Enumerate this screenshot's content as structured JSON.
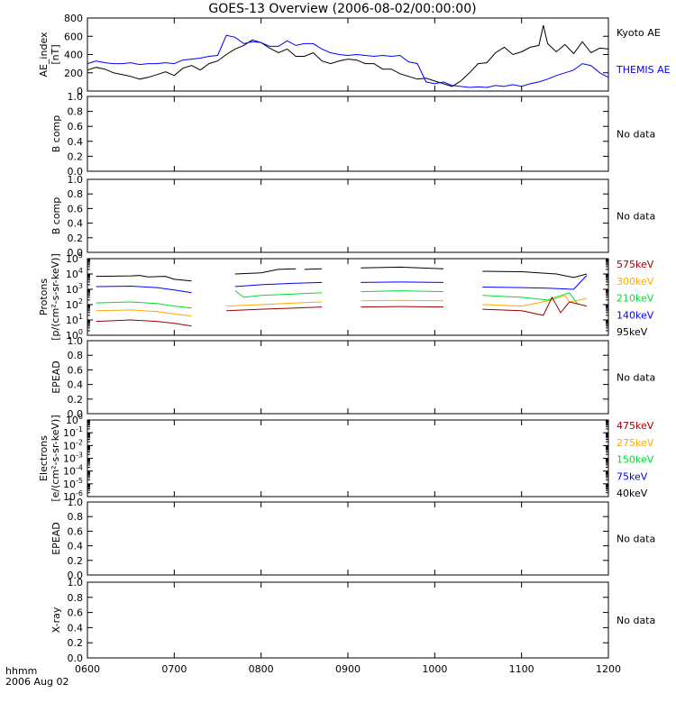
{
  "title": "GOES-13 Overview (2006-08-02/00:00:00)",
  "time_axis": {
    "ticks": [
      "0600",
      "0700",
      "0800",
      "0900",
      "1000",
      "1100",
      "1200"
    ],
    "xlim_hours": [
      6,
      12
    ],
    "corner_label_line1": "hhmm",
    "corner_label_line2": "2006 Aug 02"
  },
  "colors": {
    "black": "#000000",
    "blue": "#0000ff",
    "green": "#00dd33",
    "orange": "#ffaa00",
    "darkred": "#990000"
  },
  "chart_data": [
    {
      "type": "line",
      "panel": "ae",
      "ylabel_lines": [
        "AE_index",
        "[nT]"
      ],
      "ylim": [
        0,
        800
      ],
      "yticks": [
        "0",
        "200",
        "400",
        "600",
        "800"
      ],
      "series": [
        {
          "name": "Kyoto AE",
          "color": "#000000",
          "x": [
            6.0,
            6.1,
            6.2,
            6.3,
            6.4,
            6.5,
            6.6,
            6.7,
            6.8,
            6.9,
            7.0,
            7.1,
            7.2,
            7.3,
            7.4,
            7.5,
            7.6,
            7.7,
            7.8,
            7.9,
            8.0,
            8.1,
            8.2,
            8.3,
            8.4,
            8.5,
            8.6,
            8.7,
            8.8,
            8.9,
            9.0,
            9.1,
            9.2,
            9.3,
            9.4,
            9.5,
            9.6,
            9.7,
            9.8,
            9.9,
            10.0,
            10.1,
            10.2,
            10.3,
            10.4,
            10.5,
            10.6,
            10.7,
            10.8,
            10.9,
            11.0,
            11.1,
            11.2,
            11.25,
            11.3,
            11.4,
            11.5,
            11.6,
            11.7,
            11.8,
            11.9,
            12.0
          ],
          "y": [
            230,
            260,
            240,
            200,
            180,
            160,
            130,
            150,
            180,
            210,
            170,
            250,
            280,
            230,
            300,
            330,
            400,
            460,
            500,
            560,
            530,
            470,
            420,
            460,
            380,
            380,
            420,
            330,
            300,
            330,
            350,
            340,
            300,
            300,
            240,
            240,
            190,
            160,
            130,
            140,
            110,
            80,
            50,
            110,
            200,
            300,
            310,
            420,
            480,
            400,
            430,
            480,
            500,
            720,
            520,
            430,
            510,
            410,
            540,
            420,
            470,
            460
          ]
        },
        {
          "name": "THEMIS AE",
          "color": "#0000ff",
          "x": [
            6.0,
            6.1,
            6.2,
            6.3,
            6.4,
            6.5,
            6.6,
            6.7,
            6.8,
            6.9,
            7.0,
            7.1,
            7.2,
            7.3,
            7.4,
            7.5,
            7.6,
            7.7,
            7.8,
            7.9,
            8.0,
            8.1,
            8.2,
            8.3,
            8.4,
            8.5,
            8.6,
            8.7,
            8.8,
            8.9,
            9.0,
            9.1,
            9.2,
            9.3,
            9.4,
            9.5,
            9.6,
            9.7,
            9.8,
            9.9,
            10.0,
            10.1,
            10.2,
            10.3,
            10.4,
            10.5,
            10.6,
            10.7,
            10.8,
            10.9,
            11.0,
            11.1,
            11.2,
            11.3,
            11.4,
            11.5,
            11.6,
            11.7,
            11.8,
            11.9,
            12.0
          ],
          "y": [
            300,
            330,
            310,
            300,
            300,
            310,
            290,
            300,
            300,
            310,
            300,
            340,
            350,
            360,
            380,
            390,
            610,
            590,
            520,
            540,
            530,
            490,
            490,
            550,
            500,
            520,
            520,
            460,
            420,
            400,
            390,
            400,
            390,
            380,
            390,
            380,
            390,
            320,
            300,
            100,
            80,
            100,
            60,
            50,
            40,
            45,
            40,
            60,
            50,
            70,
            50,
            80,
            100,
            130,
            170,
            200,
            230,
            300,
            280,
            200,
            150
          ]
        }
      ],
      "legend": [
        {
          "label": "Kyoto AE",
          "color": "#000000"
        },
        {
          "label": "THEMIS AE",
          "color": "#0000ff"
        }
      ]
    },
    {
      "type": "line",
      "panel": "bcomp1",
      "ylabel_lines": [
        "B comp"
      ],
      "ylim": [
        0,
        1
      ],
      "yticks": [
        "0.0",
        "0.2",
        "0.4",
        "0.6",
        "0.8",
        "1.0"
      ],
      "series": [],
      "note": "No data"
    },
    {
      "type": "line",
      "panel": "bcomp2",
      "ylabel_lines": [
        "B comp"
      ],
      "ylim": [
        0,
        1
      ],
      "yticks": [
        "0.0",
        "0.2",
        "0.4",
        "0.6",
        "0.8",
        "1.0"
      ],
      "series": [],
      "note": "No data"
    },
    {
      "type": "line",
      "panel": "protons",
      "ylabel_lines": [
        "Protons",
        "[p/(cm²-s-sr-keV)]"
      ],
      "yscale": "log",
      "ylim": [
        1,
        100000
      ],
      "yticks": [
        {
          "base": "10",
          "exp": "0"
        },
        {
          "base": "10",
          "exp": "1"
        },
        {
          "base": "10",
          "exp": "2"
        },
        {
          "base": "10",
          "exp": "3"
        },
        {
          "base": "10",
          "exp": "4"
        },
        {
          "base": "10",
          "exp": "5"
        }
      ],
      "series": [
        {
          "name": "95keV",
          "color": "#000000",
          "segments": [
            {
              "x": [
                6.1,
                6.5,
                6.6,
                6.7,
                6.9,
                7.0,
                7.2
              ],
              "y": [
                7000,
                7500,
                8000,
                6500,
                7000,
                4500,
                3500
              ]
            },
            {
              "x": [
                7.7,
                8.0,
                8.2,
                8.4
              ],
              "y": [
                10000,
                12000,
                20000,
                22000
              ]
            },
            {
              "x": [
                8.5,
                8.7
              ],
              "y": [
                20000,
                22000
              ]
            },
            {
              "x": [
                9.15,
                9.6,
                10.1
              ],
              "y": [
                25000,
                28000,
                22000
              ]
            },
            {
              "x": [
                10.55,
                11.0,
                11.4,
                11.6,
                11.75
              ],
              "y": [
                15000,
                14000,
                10000,
                6000,
                10000
              ]
            }
          ]
        },
        {
          "name": "140keV",
          "color": "#0000ff",
          "segments": [
            {
              "x": [
                6.1,
                6.5,
                6.8,
                7.0,
                7.2
              ],
              "y": [
                1500,
                1600,
                1300,
                900,
                600
              ]
            },
            {
              "x": [
                7.7,
                8.0,
                8.4,
                8.7
              ],
              "y": [
                1500,
                2000,
                2500,
                2800
              ]
            },
            {
              "x": [
                9.15,
                9.6,
                10.1
              ],
              "y": [
                2800,
                3000,
                2800
              ]
            },
            {
              "x": [
                10.55,
                11.0,
                11.3,
                11.6,
                11.75
              ],
              "y": [
                1400,
                1300,
                1200,
                1000,
                8000
              ]
            }
          ]
        },
        {
          "name": "210keV",
          "color": "#00dd33",
          "segments": [
            {
              "x": [
                6.1,
                6.5,
                6.8,
                7.0,
                7.2
              ],
              "y": [
                130,
                150,
                120,
                80,
                60
              ]
            },
            {
              "x": [
                7.7,
                7.8,
                8.0,
                8.4,
                8.7
              ],
              "y": [
                800,
                300,
                400,
                500,
                600
              ]
            },
            {
              "x": [
                9.15,
                9.6,
                10.1
              ],
              "y": [
                700,
                800,
                700
              ]
            },
            {
              "x": [
                10.55,
                11.0,
                11.3,
                11.55,
                11.65
              ],
              "y": [
                400,
                300,
                200,
                600,
                100
              ]
            }
          ]
        },
        {
          "name": "300keV",
          "color": "#ffaa00",
          "segments": [
            {
              "x": [
                6.1,
                6.5,
                6.8,
                7.0,
                7.2
              ],
              "y": [
                40,
                45,
                35,
                25,
                18
              ]
            },
            {
              "x": [
                7.6,
                8.0,
                8.4,
                8.7
              ],
              "y": [
                80,
                100,
                130,
                150
              ]
            },
            {
              "x": [
                9.15,
                9.6,
                10.1
              ],
              "y": [
                180,
                190,
                180
              ]
            },
            {
              "x": [
                10.55,
                11.0,
                11.35,
                11.5,
                11.55,
                11.75
              ],
              "y": [
                100,
                80,
                200,
                400,
                150,
                250
              ]
            }
          ]
        },
        {
          "name": "575keV",
          "color": "#990000",
          "segments": [
            {
              "x": [
                6.1,
                6.5,
                6.8,
                7.0,
                7.2
              ],
              "y": [
                8,
                10,
                8,
                6,
                4
              ]
            },
            {
              "x": [
                7.6,
                8.0,
                8.4,
                8.7
              ],
              "y": [
                40,
                50,
                60,
                70
              ]
            },
            {
              "x": [
                9.15,
                9.6,
                10.1
              ],
              "y": [
                70,
                75,
                70
              ]
            },
            {
              "x": [
                10.55,
                11.0,
                11.25,
                11.35,
                11.45,
                11.55,
                11.75
              ],
              "y": [
                50,
                40,
                20,
                300,
                30,
                150,
                80
              ]
            }
          ]
        }
      ],
      "legend": [
        {
          "label": "575keV",
          "color": "#990000"
        },
        {
          "label": "300keV",
          "color": "#ffaa00"
        },
        {
          "label": "210keV",
          "color": "#00dd33"
        },
        {
          "label": "140keV",
          "color": "#0000ff"
        },
        {
          "label": "95keV",
          "color": "#000000"
        }
      ]
    },
    {
      "type": "line",
      "panel": "epead1",
      "ylabel_lines": [
        "EPEAD"
      ],
      "ylim": [
        0,
        1
      ],
      "yticks": [
        "0.0",
        "0.2",
        "0.4",
        "0.6",
        "0.8",
        "1.0"
      ],
      "series": [],
      "note": "No data"
    },
    {
      "type": "line",
      "panel": "electrons",
      "ylabel_lines": [
        "Electrons",
        "[e/(cm²-s-sr-keV)]"
      ],
      "yscale": "log",
      "ylim": [
        1e-06,
        1
      ],
      "yticks": [
        {
          "base": "10",
          "exp": "-6"
        },
        {
          "base": "10",
          "exp": "-5"
        },
        {
          "base": "10",
          "exp": "-4"
        },
        {
          "base": "10",
          "exp": "-3"
        },
        {
          "base": "10",
          "exp": "-2"
        },
        {
          "base": "10",
          "exp": "-1"
        },
        {
          "base": "10",
          "exp": "0"
        }
      ],
      "series": [],
      "legend": [
        {
          "label": "475keV",
          "color": "#990000"
        },
        {
          "label": "275keV",
          "color": "#ffaa00"
        },
        {
          "label": "150keV",
          "color": "#00dd33"
        },
        {
          "label": "75keV",
          "color": "#0000ff"
        },
        {
          "label": "40keV",
          "color": "#000000"
        }
      ]
    },
    {
      "type": "line",
      "panel": "epead2",
      "ylabel_lines": [
        "EPEAD"
      ],
      "ylim": [
        0,
        1
      ],
      "yticks": [
        "0.0",
        "0.2",
        "0.4",
        "0.6",
        "0.8",
        "1.0"
      ],
      "series": [],
      "note": "No data"
    },
    {
      "type": "line",
      "panel": "xray",
      "ylabel_lines": [
        "X-ray"
      ],
      "ylim": [
        0,
        1
      ],
      "yticks": [
        "0.0",
        "0.2",
        "0.4",
        "0.6",
        "0.8",
        "1.0"
      ],
      "series": [],
      "note": "No data"
    }
  ]
}
